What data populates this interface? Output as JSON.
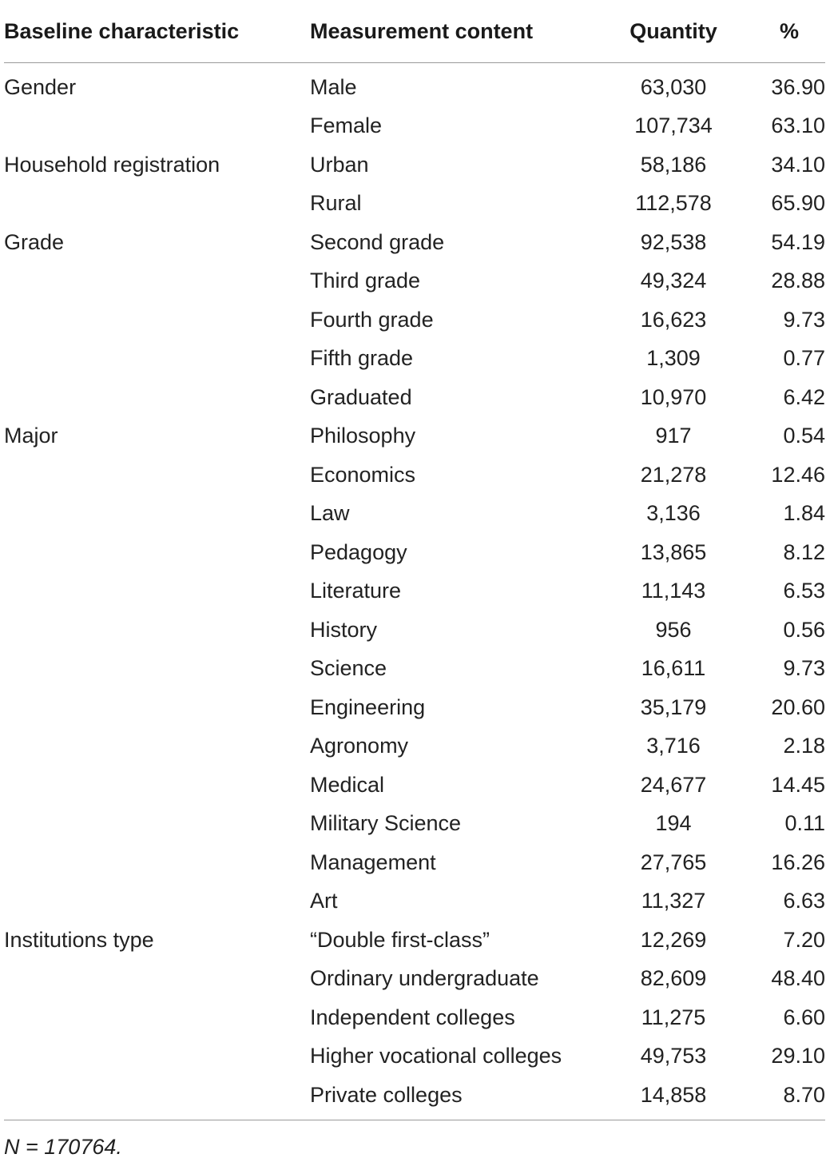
{
  "table": {
    "headers": [
      "Baseline characteristic",
      "Measurement content",
      "Quantity",
      "%"
    ],
    "rows": [
      [
        "Gender",
        "Male",
        "63,030",
        "36.90"
      ],
      [
        "",
        "Female",
        "107,734",
        "63.10"
      ],
      [
        "Household registration",
        "Urban",
        "58,186",
        "34.10"
      ],
      [
        "",
        "Rural",
        "112,578",
        "65.90"
      ],
      [
        "Grade",
        "Second grade",
        "92,538",
        "54.19"
      ],
      [
        "",
        "Third grade",
        "49,324",
        "28.88"
      ],
      [
        "",
        "Fourth grade",
        "16,623",
        "9.73"
      ],
      [
        "",
        "Fifth grade",
        "1,309",
        "0.77"
      ],
      [
        "",
        "Graduated",
        "10,970",
        "6.42"
      ],
      [
        "Major",
        "Philosophy",
        "917",
        "0.54"
      ],
      [
        "",
        "Economics",
        "21,278",
        "12.46"
      ],
      [
        "",
        "Law",
        "3,136",
        "1.84"
      ],
      [
        "",
        "Pedagogy",
        "13,865",
        "8.12"
      ],
      [
        "",
        "Literature",
        "11,143",
        "6.53"
      ],
      [
        "",
        "History",
        "956",
        "0.56"
      ],
      [
        "",
        "Science",
        "16,611",
        "9.73"
      ],
      [
        "",
        "Engineering",
        "35,179",
        "20.60"
      ],
      [
        "",
        "Agronomy",
        "3,716",
        "2.18"
      ],
      [
        "",
        "Medical",
        "24,677",
        "14.45"
      ],
      [
        "",
        "Military Science",
        "194",
        "0.11"
      ],
      [
        "",
        "Management",
        "27,765",
        "16.26"
      ],
      [
        "",
        "Art",
        "11,327",
        "6.63"
      ],
      [
        "Institutions type",
        "“Double first-class”",
        "12,269",
        "7.20"
      ],
      [
        "",
        "Ordinary undergraduate",
        "82,609",
        "48.40"
      ],
      [
        "",
        "Independent colleges",
        "11,275",
        "6.60"
      ],
      [
        "",
        "Higher vocational colleges",
        "49,753",
        "29.10"
      ],
      [
        "",
        "Private colleges",
        "14,858",
        "8.70"
      ]
    ]
  },
  "footnote": "N = 170764."
}
